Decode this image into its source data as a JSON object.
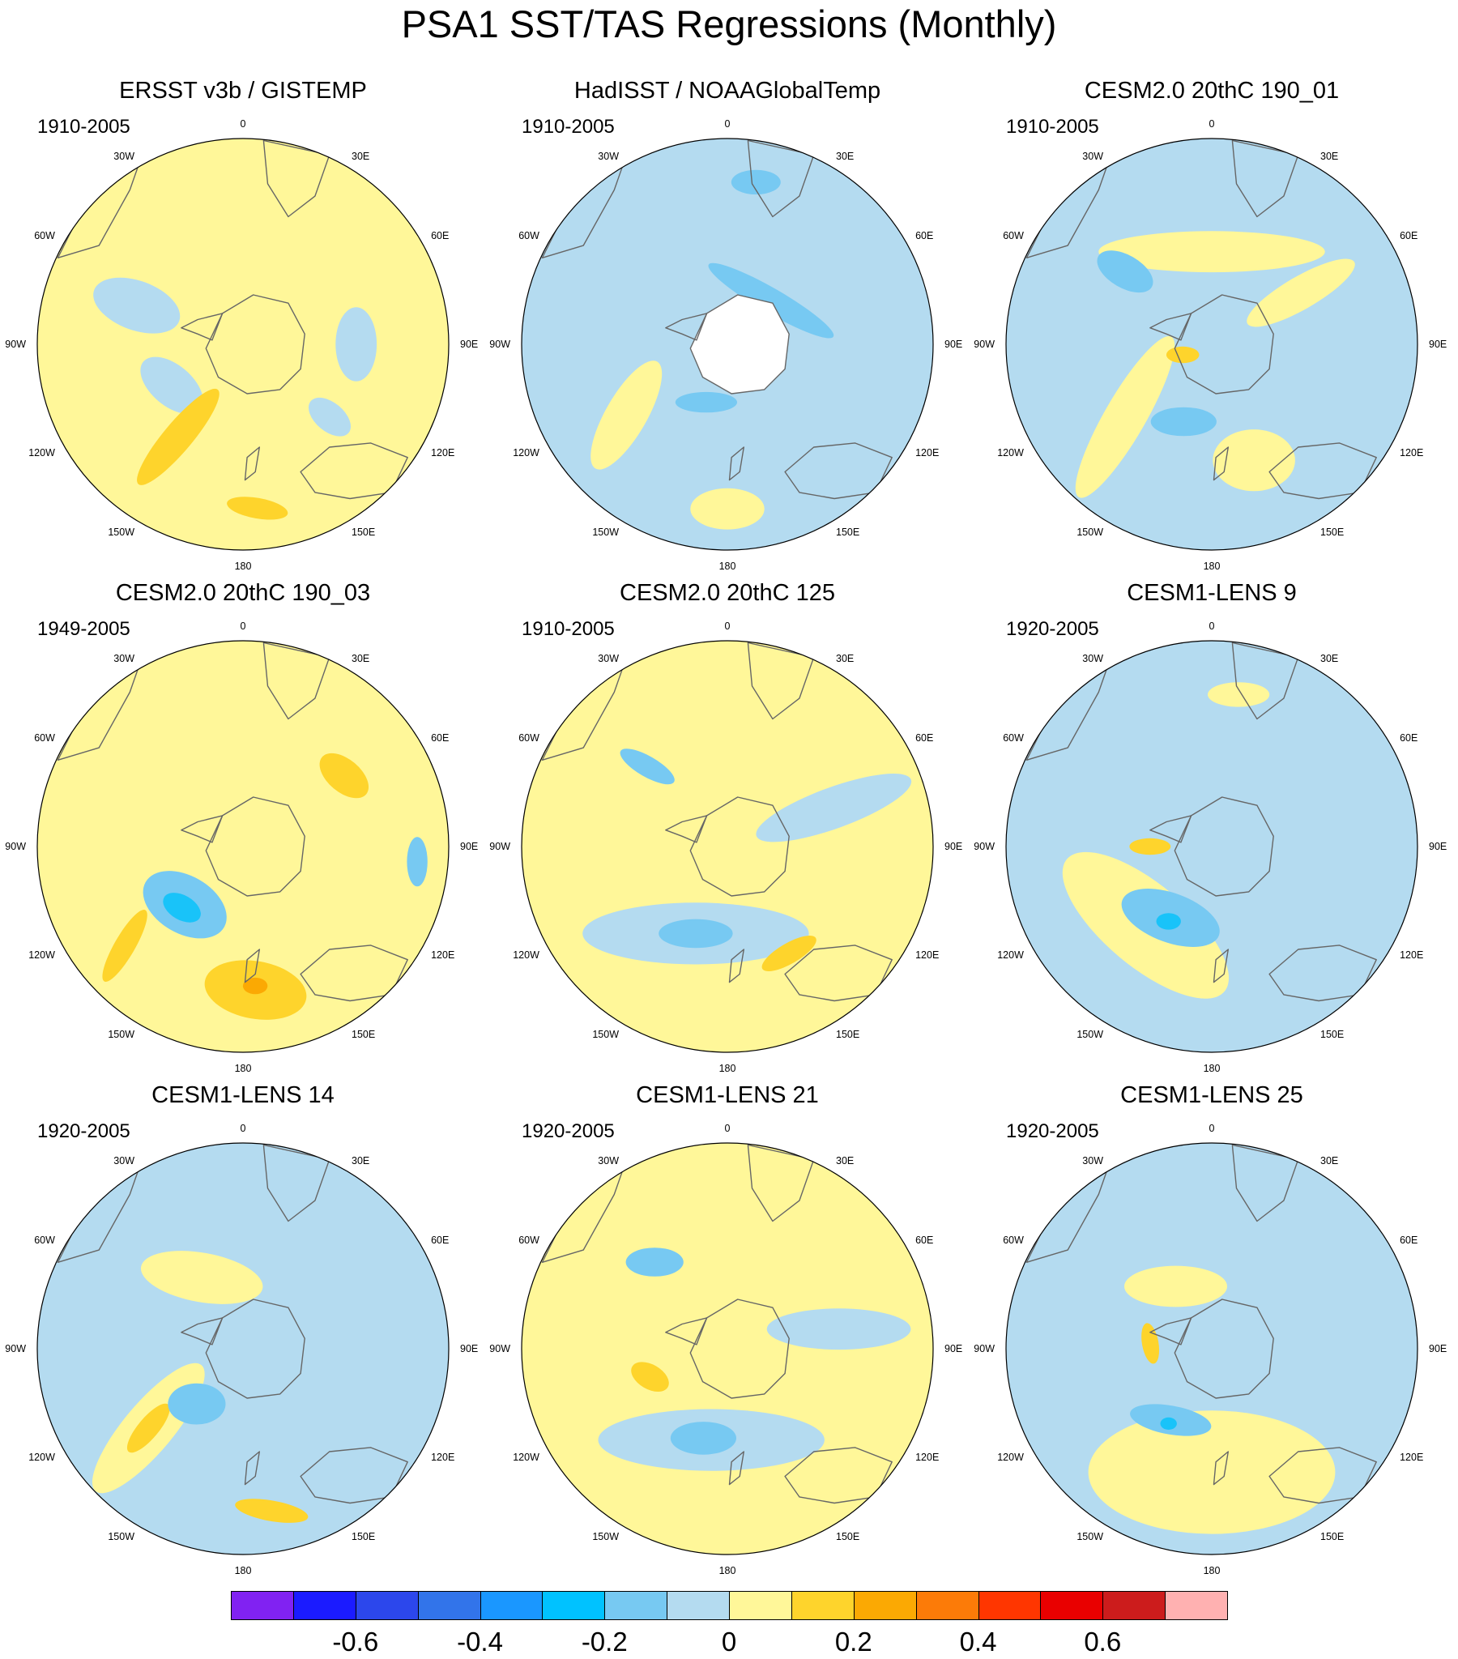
{
  "title": "PSA1 SST/TAS Regressions (Monthly)",
  "longitude_labels": [
    "0",
    "30E",
    "60E",
    "90E",
    "120E",
    "150E",
    "180",
    "150W",
    "120W",
    "90W",
    "60W",
    "30W"
  ],
  "colors": {
    "continent_outline": "#666666",
    "ocean_line": "#ffffff",
    "missing": "#ffffff"
  },
  "panels": [
    {
      "title": "ERSST v3b / GISTEMP",
      "period": "1910-2005",
      "background": "#fff799",
      "masked_antarctica": false,
      "regions": [
        {
          "ang": 290,
          "dist": 0.55,
          "rx": 0.22,
          "ry": 0.12,
          "rot": 20,
          "color": "#b4dbf0"
        },
        {
          "ang": 240,
          "dist": 0.4,
          "rx": 0.18,
          "ry": 0.1,
          "rot": 40,
          "color": "#b4dbf0"
        },
        {
          "ang": 90,
          "dist": 0.55,
          "rx": 0.18,
          "ry": 0.1,
          "rot": 90,
          "color": "#b4dbf0"
        },
        {
          "ang": 130,
          "dist": 0.55,
          "rx": 0.12,
          "ry": 0.07,
          "rot": 40,
          "color": "#b4dbf0"
        },
        {
          "ang": 215,
          "dist": 0.55,
          "rx": 0.3,
          "ry": 0.07,
          "rot": -50,
          "color": "#fed42c"
        },
        {
          "ang": 175,
          "dist": 0.8,
          "rx": 0.15,
          "ry": 0.05,
          "rot": 10,
          "color": "#fed42c"
        }
      ]
    },
    {
      "title": "HadISST / NOAAGlobalTemp",
      "period": "1910-2005",
      "background": "#b4dbf0",
      "masked_antarctica": true,
      "regions": [
        {
          "ang": 235,
          "dist": 0.6,
          "rx": 0.3,
          "ry": 0.1,
          "rot": -60,
          "color": "#fff799"
        },
        {
          "ang": 180,
          "dist": 0.8,
          "rx": 0.18,
          "ry": 0.1,
          "rot": 0,
          "color": "#fff799"
        },
        {
          "ang": 45,
          "dist": 0.3,
          "rx": 0.35,
          "ry": 0.06,
          "rot": 30,
          "color": "#77c9f2"
        },
        {
          "ang": 200,
          "dist": 0.3,
          "rx": 0.15,
          "ry": 0.05,
          "rot": 0,
          "color": "#77c9f2"
        },
        {
          "ang": 10,
          "dist": 0.8,
          "rx": 0.12,
          "ry": 0.06,
          "rot": 0,
          "color": "#77c9f2"
        }
      ]
    },
    {
      "title": "CESM2.0 20thC 190_01",
      "period": "1910-2005",
      "background": "#b4dbf0",
      "masked_antarctica": false,
      "regions": [
        {
          "ang": 0,
          "dist": 0.45,
          "rx": 0.55,
          "ry": 0.1,
          "rot": 0,
          "color": "#fff799"
        },
        {
          "ang": 60,
          "dist": 0.5,
          "rx": 0.3,
          "ry": 0.08,
          "rot": -30,
          "color": "#fff799"
        },
        {
          "ang": 230,
          "dist": 0.55,
          "rx": 0.45,
          "ry": 0.1,
          "rot": -60,
          "color": "#fff799"
        },
        {
          "ang": 160,
          "dist": 0.6,
          "rx": 0.2,
          "ry": 0.15,
          "rot": 0,
          "color": "#fff799"
        },
        {
          "ang": 310,
          "dist": 0.55,
          "rx": 0.15,
          "ry": 0.08,
          "rot": 30,
          "color": "#77c9f2"
        },
        {
          "ang": 200,
          "dist": 0.4,
          "rx": 0.16,
          "ry": 0.07,
          "rot": 0,
          "color": "#77c9f2"
        },
        {
          "ang": 250,
          "dist": 0.15,
          "rx": 0.08,
          "ry": 0.04,
          "rot": 0,
          "color": "#fed42c"
        }
      ]
    },
    {
      "title": "CESM2.0 20thC 190_03",
      "period": "1949-2005",
      "background": "#fff799",
      "masked_antarctica": false,
      "regions": [
        {
          "ang": 225,
          "dist": 0.4,
          "rx": 0.22,
          "ry": 0.14,
          "rot": 30,
          "color": "#77c9f2"
        },
        {
          "ang": 225,
          "dist": 0.42,
          "rx": 0.1,
          "ry": 0.06,
          "rot": 30,
          "color": "#19c3f9"
        },
        {
          "ang": 95,
          "dist": 0.85,
          "rx": 0.12,
          "ry": 0.05,
          "rot": 90,
          "color": "#77c9f2"
        },
        {
          "ang": 175,
          "dist": 0.7,
          "rx": 0.25,
          "ry": 0.14,
          "rot": 10,
          "color": "#fed42c"
        },
        {
          "ang": 175,
          "dist": 0.68,
          "rx": 0.06,
          "ry": 0.04,
          "rot": 0,
          "color": "#fba903"
        },
        {
          "ang": 55,
          "dist": 0.6,
          "rx": 0.14,
          "ry": 0.08,
          "rot": 40,
          "color": "#fed42c"
        },
        {
          "ang": 230,
          "dist": 0.75,
          "rx": 0.2,
          "ry": 0.05,
          "rot": -60,
          "color": "#fed42c"
        }
      ]
    },
    {
      "title": "CESM2.0 20thC 125",
      "period": "1910-2005",
      "background": "#fff799",
      "masked_antarctica": false,
      "regions": [
        {
          "ang": 200,
          "dist": 0.45,
          "rx": 0.55,
          "ry": 0.15,
          "rot": 0,
          "color": "#b4dbf0"
        },
        {
          "ang": 200,
          "dist": 0.45,
          "rx": 0.18,
          "ry": 0.07,
          "rot": 0,
          "color": "#77c9f2"
        },
        {
          "ang": 70,
          "dist": 0.55,
          "rx": 0.4,
          "ry": 0.1,
          "rot": -20,
          "color": "#b4dbf0"
        },
        {
          "ang": 315,
          "dist": 0.55,
          "rx": 0.15,
          "ry": 0.05,
          "rot": 30,
          "color": "#77c9f2"
        },
        {
          "ang": 150,
          "dist": 0.6,
          "rx": 0.15,
          "ry": 0.05,
          "rot": -30,
          "color": "#fed42c"
        }
      ]
    },
    {
      "title": "CESM1-LENS 9",
      "period": "1920-2005",
      "background": "#b4dbf0",
      "masked_antarctica": false,
      "regions": [
        {
          "ang": 220,
          "dist": 0.5,
          "rx": 0.5,
          "ry": 0.2,
          "rot": 40,
          "color": "#fff799"
        },
        {
          "ang": 210,
          "dist": 0.4,
          "rx": 0.25,
          "ry": 0.12,
          "rot": 20,
          "color": "#77c9f2"
        },
        {
          "ang": 210,
          "dist": 0.42,
          "rx": 0.06,
          "ry": 0.04,
          "rot": 0,
          "color": "#19c3f9"
        },
        {
          "ang": 10,
          "dist": 0.75,
          "rx": 0.15,
          "ry": 0.06,
          "rot": 0,
          "color": "#fff799"
        },
        {
          "ang": 270,
          "dist": 0.3,
          "rx": 0.1,
          "ry": 0.04,
          "rot": 0,
          "color": "#fed42c"
        }
      ]
    },
    {
      "title": "CESM1-LENS 14",
      "period": "1920-2005",
      "background": "#b4dbf0",
      "masked_antarctica": false,
      "regions": [
        {
          "ang": 330,
          "dist": 0.4,
          "rx": 0.3,
          "ry": 0.12,
          "rot": 10,
          "color": "#fff799"
        },
        {
          "ang": 230,
          "dist": 0.6,
          "rx": 0.4,
          "ry": 0.12,
          "rot": -50,
          "color": "#fff799"
        },
        {
          "ang": 230,
          "dist": 0.6,
          "rx": 0.15,
          "ry": 0.05,
          "rot": -50,
          "color": "#fed42c"
        },
        {
          "ang": 170,
          "dist": 0.8,
          "rx": 0.18,
          "ry": 0.05,
          "rot": 10,
          "color": "#fed42c"
        },
        {
          "ang": 220,
          "dist": 0.35,
          "rx": 0.14,
          "ry": 0.1,
          "rot": 0,
          "color": "#77c9f2"
        }
      ]
    },
    {
      "title": "CESM1-LENS 21",
      "period": "1920-2005",
      "background": "#fff799",
      "masked_antarctica": false,
      "regions": [
        {
          "ang": 190,
          "dist": 0.45,
          "rx": 0.55,
          "ry": 0.15,
          "rot": 0,
          "color": "#b4dbf0"
        },
        {
          "ang": 195,
          "dist": 0.45,
          "rx": 0.16,
          "ry": 0.08,
          "rot": 0,
          "color": "#77c9f2"
        },
        {
          "ang": 320,
          "dist": 0.55,
          "rx": 0.14,
          "ry": 0.07,
          "rot": 0,
          "color": "#77c9f2"
        },
        {
          "ang": 80,
          "dist": 0.55,
          "rx": 0.35,
          "ry": 0.1,
          "rot": 0,
          "color": "#b4dbf0"
        },
        {
          "ang": 250,
          "dist": 0.4,
          "rx": 0.1,
          "ry": 0.06,
          "rot": 30,
          "color": "#fed42c"
        }
      ]
    },
    {
      "title": "CESM1-LENS 25",
      "period": "1920-2005",
      "background": "#b4dbf0",
      "masked_antarctica": false,
      "regions": [
        {
          "ang": 180,
          "dist": 0.6,
          "rx": 0.6,
          "ry": 0.3,
          "rot": 0,
          "color": "#fff799"
        },
        {
          "ang": 210,
          "dist": 0.4,
          "rx": 0.2,
          "ry": 0.07,
          "rot": 10,
          "color": "#77c9f2"
        },
        {
          "ang": 210,
          "dist": 0.42,
          "rx": 0.04,
          "ry": 0.03,
          "rot": 0,
          "color": "#19c3f9"
        },
        {
          "ang": 330,
          "dist": 0.35,
          "rx": 0.25,
          "ry": 0.1,
          "rot": 0,
          "color": "#fff799"
        },
        {
          "ang": 275,
          "dist": 0.3,
          "rx": 0.1,
          "ry": 0.04,
          "rot": 80,
          "color": "#fed42c"
        }
      ]
    }
  ],
  "colorbar": {
    "colors": [
      "#8122f2",
      "#1b1bff",
      "#2c47ec",
      "#3274ea",
      "#1a97ff",
      "#00c2ff",
      "#77c9f2",
      "#b4dbf0",
      "#fff799",
      "#fed42c",
      "#fba903",
      "#fc7b08",
      "#ff3600",
      "#e90000",
      "#cc1c1c",
      "#ffb1b1"
    ],
    "labels": [
      "-0.6",
      "-0.4",
      "-0.2",
      "0",
      "0.2",
      "0.4",
      "0.6"
    ]
  }
}
